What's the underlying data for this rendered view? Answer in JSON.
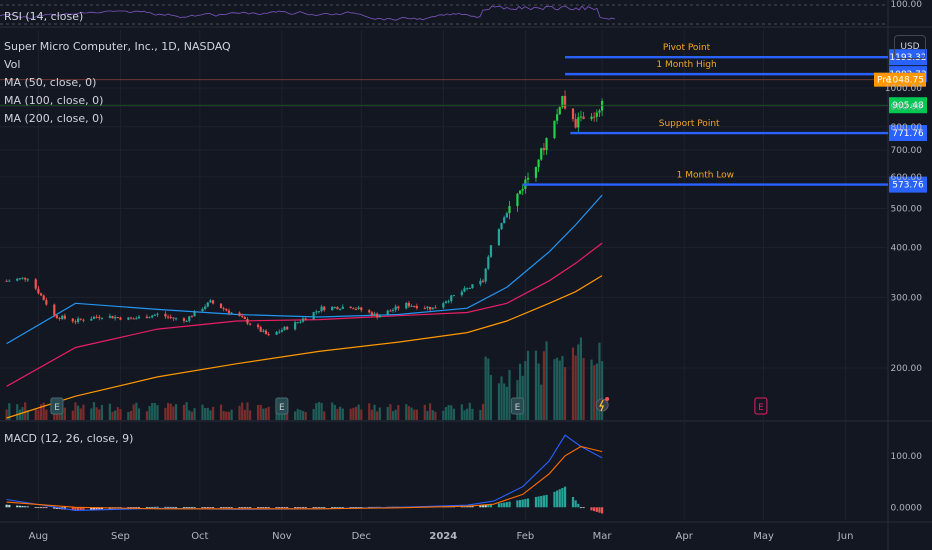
{
  "panels": {
    "rsi": {
      "label": "RSI (14, close)",
      "axis_label": "100.00"
    },
    "main": {
      "symbol": "Super Micro Computer, Inc., 1D, NASDAQ",
      "indicators": [
        "Vol",
        "MA (50, close, 0)",
        "MA (100, close, 0)",
        "MA (200, close, 0)"
      ]
    },
    "macd": {
      "label": "MACD (12, 26, close, 9)",
      "ticks": [
        "100.00",
        "0.0000"
      ]
    }
  },
  "currency_button": "USD",
  "pre_label": "Pre",
  "colors": {
    "background": "#131722",
    "up": "#26a69a",
    "up_bright": "#22d34a",
    "down": "#ef5350",
    "level_line": "#2962ff",
    "level_text": "#f5a623",
    "ma50": "#2196f3",
    "ma100": "#e91e63",
    "ma200": "#ff9800",
    "macd_line": "#2962ff",
    "signal_line": "#ff6d00",
    "price_tag": "#00c853",
    "pre_tag": "#ff9800"
  },
  "chart_data": {
    "type": "candlestick",
    "title": "Super Micro Computer, Inc., 1D, NASDAQ",
    "x_ticks": [
      "Aug",
      "Sep",
      "Oct",
      "Nov",
      "Dec",
      "2024",
      "Feb",
      "Mar",
      "Apr",
      "May",
      "Jun"
    ],
    "y_ticks": [
      200,
      300,
      400,
      500,
      600,
      700,
      800,
      900,
      1000
    ],
    "y_tick_labels": [
      "200.00",
      "300.00",
      "400.00",
      "500.00",
      "600.00",
      "700.00",
      "800.00",
      "900.00",
      "1000.00"
    ],
    "y_range": [
      140,
      1280
    ],
    "last_price": {
      "label": "905.48",
      "value": 905.48
    },
    "pre_price": {
      "label": "1048.75",
      "value": 1048.75
    },
    "levels": [
      {
        "name": "Pivot Point",
        "value": 1193.32,
        "label": "1193.32",
        "start": "2024-02-16"
      },
      {
        "name": "1 Month High",
        "value": 1082.73,
        "label": "1082.73",
        "start": "2024-02-16"
      },
      {
        "name": "Support Point",
        "value": 771.76,
        "label": "771.76",
        "start": "2024-02-18"
      },
      {
        "name": "1 Month Low",
        "value": 573.76,
        "label": "573.76",
        "start": "2024-01-31"
      }
    ],
    "close_series": [
      {
        "date": "2023-07-20",
        "value": 330
      },
      {
        "date": "2023-07-28",
        "value": 336
      },
      {
        "date": "2023-08-07",
        "value": 270
      },
      {
        "date": "2023-08-15",
        "value": 262
      },
      {
        "date": "2023-08-25",
        "value": 270
      },
      {
        "date": "2023-09-05",
        "value": 265
      },
      {
        "date": "2023-09-15",
        "value": 272
      },
      {
        "date": "2023-09-25",
        "value": 262
      },
      {
        "date": "2023-10-05",
        "value": 292
      },
      {
        "date": "2023-10-16",
        "value": 268
      },
      {
        "date": "2023-10-27",
        "value": 240
      },
      {
        "date": "2023-11-06",
        "value": 258
      },
      {
        "date": "2023-11-16",
        "value": 282
      },
      {
        "date": "2023-11-27",
        "value": 285
      },
      {
        "date": "2023-12-07",
        "value": 270
      },
      {
        "date": "2023-12-18",
        "value": 288
      },
      {
        "date": "2023-12-28",
        "value": 282
      },
      {
        "date": "2024-01-08",
        "value": 310
      },
      {
        "date": "2024-01-16",
        "value": 330
      },
      {
        "date": "2024-01-19",
        "value": 400
      },
      {
        "date": "2024-01-24",
        "value": 480
      },
      {
        "date": "2024-01-29",
        "value": 540
      },
      {
        "date": "2024-02-02",
        "value": 600
      },
      {
        "date": "2024-02-07",
        "value": 690
      },
      {
        "date": "2024-02-12",
        "value": 820
      },
      {
        "date": "2024-02-15",
        "value": 950
      },
      {
        "date": "2024-02-16",
        "value": 880
      },
      {
        "date": "2024-02-20",
        "value": 800
      },
      {
        "date": "2024-02-22",
        "value": 860
      },
      {
        "date": "2024-02-26",
        "value": 830
      },
      {
        "date": "2024-02-29",
        "value": 860
      },
      {
        "date": "2024-03-01",
        "value": 905
      }
    ],
    "moving_averages": [
      {
        "name": "MA (50, close, 0)",
        "points": [
          {
            "date": "2023-07-20",
            "value": 230
          },
          {
            "date": "2023-08-15",
            "value": 290
          },
          {
            "date": "2023-09-15",
            "value": 280
          },
          {
            "date": "2023-10-15",
            "value": 272
          },
          {
            "date": "2023-11-15",
            "value": 268
          },
          {
            "date": "2023-12-15",
            "value": 272
          },
          {
            "date": "2024-01-10",
            "value": 282
          },
          {
            "date": "2024-01-25",
            "value": 318
          },
          {
            "date": "2024-02-10",
            "value": 390
          },
          {
            "date": "2024-02-20",
            "value": 455
          },
          {
            "date": "2024-03-01",
            "value": 540
          }
        ]
      },
      {
        "name": "MA (100, close, 0)",
        "points": [
          {
            "date": "2023-07-20",
            "value": 180
          },
          {
            "date": "2023-08-15",
            "value": 225
          },
          {
            "date": "2023-09-15",
            "value": 250
          },
          {
            "date": "2023-10-15",
            "value": 262
          },
          {
            "date": "2023-11-15",
            "value": 264
          },
          {
            "date": "2023-12-15",
            "value": 270
          },
          {
            "date": "2024-01-10",
            "value": 275
          },
          {
            "date": "2024-01-25",
            "value": 290
          },
          {
            "date": "2024-02-10",
            "value": 330
          },
          {
            "date": "2024-02-20",
            "value": 365
          },
          {
            "date": "2024-03-01",
            "value": 410
          }
        ]
      },
      {
        "name": "MA (200, close, 0)",
        "points": [
          {
            "date": "2023-07-20",
            "value": 150
          },
          {
            "date": "2023-08-15",
            "value": 170
          },
          {
            "date": "2023-09-15",
            "value": 190
          },
          {
            "date": "2023-10-15",
            "value": 205
          },
          {
            "date": "2023-11-15",
            "value": 220
          },
          {
            "date": "2023-12-15",
            "value": 232
          },
          {
            "date": "2024-01-10",
            "value": 245
          },
          {
            "date": "2024-01-25",
            "value": 262
          },
          {
            "date": "2024-02-10",
            "value": 290
          },
          {
            "date": "2024-02-20",
            "value": 310
          },
          {
            "date": "2024-03-01",
            "value": 340
          }
        ]
      }
    ],
    "earnings_markers": [
      "2023-08-08",
      "2023-11-01",
      "2024-01-29",
      "2024-04-30"
    ],
    "dividend_marker": "2024-03-01",
    "macd": {
      "label": "MACD (12, 26, close, 9)",
      "ticks": [
        100,
        0
      ],
      "range": [
        -15,
        150
      ],
      "macd_line": [
        {
          "date": "2023-07-20",
          "value": 15
        },
        {
          "date": "2023-08-15",
          "value": -6
        },
        {
          "date": "2023-09-15",
          "value": -2
        },
        {
          "date": "2023-10-15",
          "value": -4
        },
        {
          "date": "2023-11-15",
          "value": -3
        },
        {
          "date": "2023-12-15",
          "value": 0
        },
        {
          "date": "2024-01-10",
          "value": 4
        },
        {
          "date": "2024-01-20",
          "value": 12
        },
        {
          "date": "2024-01-31",
          "value": 40
        },
        {
          "date": "2024-02-10",
          "value": 90
        },
        {
          "date": "2024-02-16",
          "value": 140
        },
        {
          "date": "2024-02-22",
          "value": 118
        },
        {
          "date": "2024-03-01",
          "value": 96
        }
      ],
      "signal_line": [
        {
          "date": "2023-07-20",
          "value": 10
        },
        {
          "date": "2023-08-15",
          "value": 0
        },
        {
          "date": "2023-09-15",
          "value": -3
        },
        {
          "date": "2023-10-15",
          "value": -3
        },
        {
          "date": "2023-11-15",
          "value": -3
        },
        {
          "date": "2023-12-15",
          "value": -1
        },
        {
          "date": "2024-01-10",
          "value": 2
        },
        {
          "date": "2024-01-20",
          "value": 6
        },
        {
          "date": "2024-01-31",
          "value": 25
        },
        {
          "date": "2024-02-10",
          "value": 65
        },
        {
          "date": "2024-02-16",
          "value": 100
        },
        {
          "date": "2024-02-22",
          "value": 118
        },
        {
          "date": "2024-03-01",
          "value": 108
        }
      ]
    }
  }
}
